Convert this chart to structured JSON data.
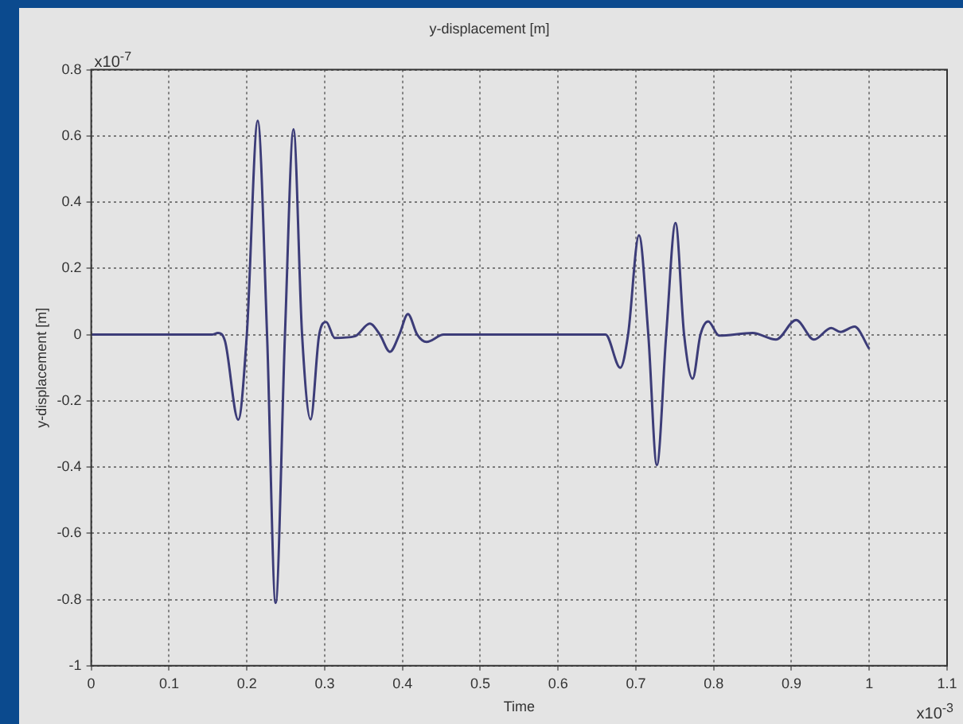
{
  "chart_data": {
    "type": "line",
    "title": "y-displacement [m]",
    "xlabel": "Time",
    "ylabel": "y-displacement [m]",
    "annotations": [
      "x10$^{-7}$",
      "x10$^{-3}$"
    ],
    "x": [
      0,
      0.1,
      0.155,
      0.163,
      0.172,
      0.189,
      0.2,
      0.214,
      0.226,
      0.237,
      0.249,
      0.26,
      0.271,
      0.282,
      0.293,
      0.302,
      0.313,
      0.339,
      0.358,
      0.371,
      0.384,
      0.396,
      0.407,
      0.419,
      0.431,
      0.453,
      0.55,
      0.661,
      0.68,
      0.69,
      0.704,
      0.716,
      0.727,
      0.739,
      0.751,
      0.762,
      0.773,
      0.783,
      0.793,
      0.807,
      0.85,
      0.88,
      0.906,
      0.929,
      0.951,
      0.963,
      0.981,
      1.0
    ],
    "series": [
      {
        "color": "#3c3c78",
        "values": [
          0,
          0,
          0,
          0.005,
          -0.02,
          -0.257,
          0,
          0.646,
          0,
          -0.81,
          0,
          0.62,
          0,
          -0.256,
          0,
          0.038,
          -0.01,
          -0.005,
          0.033,
          0,
          -0.052,
          0,
          0.062,
          0,
          -0.022,
          0,
          0,
          0,
          -0.1,
          0,
          0.3,
          0,
          -0.394,
          0,
          0.337,
          0,
          -0.133,
          0,
          0.04,
          -0.003,
          0.005,
          -0.015,
          0.044,
          -0.015,
          0.02,
          0.008,
          0.024,
          -0.043
        ]
      }
    ],
    "xlim": [
      0,
      1.1
    ],
    "xticks": [
      0,
      0.1,
      0.2,
      0.3,
      0.4,
      0.5,
      0.6,
      0.7,
      0.8,
      0.9,
      1,
      1.1
    ],
    "ylim": [
      -1,
      0.8
    ],
    "yticks": [
      -1,
      -0.8,
      -0.6,
      -0.4,
      -0.2,
      0,
      0.2,
      0.4,
      0.6,
      0.8
    ],
    "grid": true,
    "legend": false,
    "marker": "none",
    "line_style": "solid"
  }
}
